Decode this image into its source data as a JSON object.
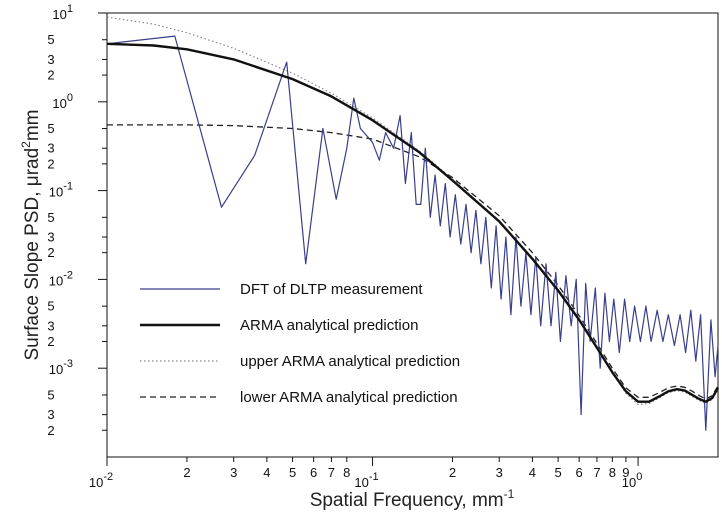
{
  "chart_data": {
    "type": "line",
    "xlabel": "Spatial Frequency, mm",
    "xlabel_sup": "-1",
    "ylabel": "Surface Slope PSD, μrad",
    "ylabel_sup": "2",
    "ylabel_tail": "mm",
    "x_scale": "log",
    "y_scale": "log",
    "xlim": [
      0.01,
      2.0
    ],
    "ylim": [
      0.0001,
      10
    ],
    "grid": false,
    "legend_position": "bottom-left",
    "x_major_ticks": [
      {
        "v": 0.01,
        "base": "10",
        "exp": "-2"
      },
      {
        "v": 0.1,
        "base": "10",
        "exp": "-1"
      },
      {
        "v": 1.0,
        "base": "10",
        "exp": "0"
      }
    ],
    "x_minor_ticks": [
      {
        "v": 0.02,
        "label": "2"
      },
      {
        "v": 0.03,
        "label": "3"
      },
      {
        "v": 0.04,
        "label": "4"
      },
      {
        "v": 0.05,
        "label": "5"
      },
      {
        "v": 0.06,
        "label": "6"
      },
      {
        "v": 0.07,
        "label": "7"
      },
      {
        "v": 0.08,
        "label": "8"
      },
      {
        "v": 0.2,
        "label": "2"
      },
      {
        "v": 0.3,
        "label": "3"
      },
      {
        "v": 0.4,
        "label": "4"
      },
      {
        "v": 0.5,
        "label": "5"
      },
      {
        "v": 0.6,
        "label": "6"
      },
      {
        "v": 0.7,
        "label": "7"
      },
      {
        "v": 0.8,
        "label": "8"
      },
      {
        "v": 0.9,
        "label": "9"
      }
    ],
    "y_major_ticks": [
      {
        "v": 10,
        "base": "10",
        "exp": "1"
      },
      {
        "v": 1,
        "base": "10",
        "exp": "0"
      },
      {
        "v": 0.1,
        "base": "10",
        "exp": "-1"
      },
      {
        "v": 0.01,
        "base": "10",
        "exp": "-2"
      },
      {
        "v": 0.001,
        "base": "10",
        "exp": "-3"
      }
    ],
    "y_minor_ticks": [
      {
        "v": 5,
        "label": "5"
      },
      {
        "v": 3,
        "label": "3"
      },
      {
        "v": 2,
        "label": "2"
      },
      {
        "v": 0.5,
        "label": "5"
      },
      {
        "v": 0.3,
        "label": "3"
      },
      {
        "v": 0.2,
        "label": "2"
      },
      {
        "v": 0.05,
        "label": "5"
      },
      {
        "v": 0.03,
        "label": "3"
      },
      {
        "v": 0.02,
        "label": "2"
      },
      {
        "v": 0.005,
        "label": "5"
      },
      {
        "v": 0.003,
        "label": "3"
      },
      {
        "v": 0.002,
        "label": "2"
      },
      {
        "v": 0.0005,
        "label": "5"
      },
      {
        "v": 0.0003,
        "label": "3"
      },
      {
        "v": 0.0002,
        "label": "2"
      }
    ],
    "series": [
      {
        "name": "DFT of DLTP measurement",
        "color": "#3a3f8a",
        "style": "solid",
        "x": [
          0.01,
          0.018,
          0.027,
          0.036,
          0.0475,
          0.056,
          0.065,
          0.073,
          0.08,
          0.085,
          0.09,
          0.1,
          0.106,
          0.112,
          0.12,
          0.127,
          0.133,
          0.14,
          0.146,
          0.152,
          0.158,
          0.165,
          0.172,
          0.18,
          0.188,
          0.196,
          0.205,
          0.215,
          0.225,
          0.235,
          0.245,
          0.256,
          0.267,
          0.28,
          0.292,
          0.305,
          0.318,
          0.332,
          0.347,
          0.362,
          0.378,
          0.395,
          0.412,
          0.43,
          0.45,
          0.47,
          0.49,
          0.51,
          0.535,
          0.56,
          0.585,
          0.61,
          0.635,
          0.66,
          0.69,
          0.72,
          0.75,
          0.78,
          0.81,
          0.85,
          0.89,
          0.93,
          0.97,
          1.02,
          1.07,
          1.12,
          1.18,
          1.24,
          1.3,
          1.37,
          1.44,
          1.51,
          1.58,
          1.65,
          1.72,
          1.8,
          1.88,
          1.95,
          2.0
        ],
        "y": [
          4.5,
          5.5,
          0.065,
          0.25,
          2.8,
          0.015,
          0.5,
          0.08,
          0.3,
          1.1,
          0.5,
          0.35,
          0.22,
          0.45,
          0.3,
          0.7,
          0.12,
          0.45,
          0.07,
          0.07,
          0.3,
          0.05,
          0.15,
          0.04,
          0.12,
          0.03,
          0.09,
          0.025,
          0.07,
          0.02,
          0.06,
          0.015,
          0.05,
          0.008,
          0.04,
          0.006,
          0.03,
          0.004,
          0.03,
          0.005,
          0.02,
          0.004,
          0.018,
          0.003,
          0.015,
          0.003,
          0.012,
          0.002,
          0.011,
          0.003,
          0.01,
          0.0003,
          0.009,
          0.002,
          0.008,
          0.001,
          0.007,
          0.002,
          0.006,
          0.0015,
          0.006,
          0.002,
          0.005,
          0.002,
          0.005,
          0.002,
          0.0045,
          0.002,
          0.004,
          0.0018,
          0.004,
          0.0015,
          0.0045,
          0.0012,
          0.004,
          0.0002,
          0.0035,
          0.0008,
          0.0018
        ]
      },
      {
        "name": "ARMA analytical prediction",
        "color": "#111111",
        "style": "thick",
        "x": [
          0.01,
          0.015,
          0.02,
          0.03,
          0.05,
          0.07,
          0.1,
          0.15,
          0.2,
          0.3,
          0.4,
          0.5,
          0.6,
          0.7,
          0.8,
          0.9,
          1.0,
          1.1,
          1.2,
          1.3,
          1.4,
          1.5,
          1.6,
          1.7,
          1.8,
          1.9,
          2.0
        ],
        "y": [
          4.5,
          4.3,
          3.9,
          3.0,
          1.8,
          1.15,
          0.62,
          0.27,
          0.13,
          0.045,
          0.017,
          0.0075,
          0.0035,
          0.0017,
          0.0009,
          0.00055,
          0.00042,
          0.00042,
          0.00048,
          0.00055,
          0.00058,
          0.00056,
          0.0005,
          0.00045,
          0.00042,
          0.00046,
          0.0006
        ]
      },
      {
        "name": "upper ARMA analytical prediction",
        "color": "#888888",
        "style": "dotted",
        "x": [
          0.01,
          0.015,
          0.02,
          0.03,
          0.05,
          0.07,
          0.1,
          0.15,
          0.2,
          0.3,
          0.4,
          0.5,
          0.6,
          0.7,
          0.8,
          0.9,
          1.0,
          1.1,
          1.2,
          1.3,
          1.4,
          1.5,
          1.6,
          1.7,
          1.8,
          1.9,
          2.0
        ],
        "y": [
          9.0,
          7.5,
          6.0,
          4.0,
          2.1,
          1.25,
          0.66,
          0.28,
          0.135,
          0.046,
          0.0175,
          0.0077,
          0.0036,
          0.0017,
          0.00088,
          0.00052,
          0.00039,
          0.0004,
          0.00046,
          0.00053,
          0.00056,
          0.00054,
          0.00048,
          0.00043,
          0.0004,
          0.00044,
          0.00058
        ]
      },
      {
        "name": "lower ARMA analytical prediction",
        "color": "#222222",
        "style": "dashed",
        "x": [
          0.01,
          0.02,
          0.03,
          0.05,
          0.07,
          0.1,
          0.15,
          0.2,
          0.3,
          0.4,
          0.5,
          0.6,
          0.7,
          0.8,
          0.9,
          1.0,
          1.1,
          1.2,
          1.3,
          1.4,
          1.5,
          1.6,
          1.7,
          1.8,
          1.9,
          2.0
        ],
        "y": [
          0.55,
          0.55,
          0.54,
          0.5,
          0.45,
          0.38,
          0.24,
          0.14,
          0.052,
          0.02,
          0.0086,
          0.0039,
          0.0019,
          0.001,
          0.0006,
          0.00047,
          0.00047,
          0.00053,
          0.0006,
          0.00063,
          0.00061,
          0.00055,
          0.00049,
          0.00045,
          0.00049,
          0.00063
        ]
      }
    ]
  }
}
